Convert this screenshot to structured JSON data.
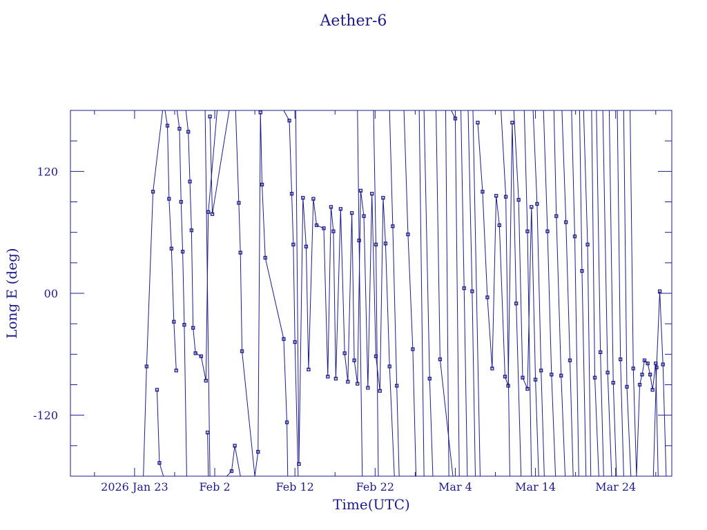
{
  "chart_data": {
    "type": "line",
    "title": "Aether-6",
    "xlabel": "Time(UTC)",
    "ylabel": "Long E (deg)",
    "x_start": "2026-01-15",
    "x_end": "2026-03-31",
    "xlim": [
      0,
      75
    ],
    "ylim": [
      -180,
      180
    ],
    "x_ticks": [
      {
        "t": 8,
        "label": "2026 Jan 23"
      },
      {
        "t": 18,
        "label": "Feb  2"
      },
      {
        "t": 28,
        "label": "Feb 12"
      },
      {
        "t": 38,
        "label": "Feb 22"
      },
      {
        "t": 48,
        "label": "Mar  4"
      },
      {
        "t": 58,
        "label": "Mar 14"
      },
      {
        "t": 68,
        "label": "Mar 24"
      }
    ],
    "y_ticks": [
      {
        "v": 120,
        "label": "120"
      },
      {
        "v": 0,
        "label": "00"
      },
      {
        "v": -120,
        "label": "-120"
      }
    ],
    "segments": [
      [
        [
          9.1,
          -180
        ],
        [
          9.5,
          -72
        ],
        [
          10.3,
          100
        ],
        [
          11.5,
          180
        ]
      ],
      [
        [
          10.8,
          -95
        ],
        [
          11.1,
          -167
        ],
        [
          11.6,
          -180
        ]
      ],
      [
        [
          11.8,
          180
        ],
        [
          12.1,
          165
        ],
        [
          12.3,
          93
        ],
        [
          12.6,
          44
        ],
        [
          12.9,
          -28
        ],
        [
          13.2,
          -76
        ]
      ],
      [
        [
          13.3,
          180
        ],
        [
          13.6,
          162
        ],
        [
          13.8,
          90
        ],
        [
          14.0,
          41
        ],
        [
          14.2,
          -31
        ],
        [
          14.5,
          -180
        ]
      ],
      [
        [
          14.4,
          180
        ],
        [
          14.7,
          159
        ],
        [
          14.9,
          110
        ],
        [
          15.1,
          62
        ],
        [
          15.3,
          -34
        ],
        [
          15.6,
          -59
        ],
        [
          16.3,
          -62
        ],
        [
          16.9,
          -86
        ],
        [
          17.2,
          80
        ],
        [
          18.3,
          180
        ]
      ],
      [
        [
          16.8,
          180
        ],
        [
          17.4,
          -180
        ]
      ],
      [
        [
          17.1,
          -137
        ],
        [
          17.2,
          -180
        ]
      ],
      [
        [
          17.4,
          174
        ],
        [
          17.7,
          78
        ],
        [
          19.8,
          180
        ]
      ],
      [
        [
          19.5,
          -180
        ],
        [
          20.1,
          -175
        ],
        [
          20.5,
          -150
        ],
        [
          21.2,
          -180
        ]
      ],
      [
        [
          20.6,
          180
        ],
        [
          21.0,
          89
        ],
        [
          21.2,
          40
        ],
        [
          21.4,
          -57
        ],
        [
          23.0,
          -180
        ]
      ],
      [
        [
          23.0,
          -180
        ],
        [
          23.4,
          -156
        ],
        [
          23.7,
          178
        ],
        [
          23.9,
          107
        ],
        [
          24.3,
          35
        ],
        [
          26.6,
          -45
        ],
        [
          27.0,
          -127
        ],
        [
          27.1,
          -180
        ]
      ],
      [
        [
          26.6,
          180
        ],
        [
          27.3,
          170
        ],
        [
          27.6,
          98
        ],
        [
          27.8,
          48
        ],
        [
          28.0,
          -48
        ],
        [
          28.4,
          -180
        ]
      ],
      [
        [
          28.1,
          180
        ],
        [
          28.5,
          -168
        ],
        [
          29.0,
          94
        ],
        [
          29.4,
          46
        ],
        [
          29.7,
          -75
        ],
        [
          30.3,
          93
        ],
        [
          30.7,
          67
        ],
        [
          31.6,
          64
        ],
        [
          32.1,
          -82
        ],
        [
          32.5,
          85
        ],
        [
          32.8,
          61
        ],
        [
          33.1,
          -84
        ],
        [
          33.7,
          83
        ],
        [
          34.2,
          -59
        ],
        [
          34.6,
          -87
        ],
        [
          35.1,
          79
        ],
        [
          35.4,
          -66
        ],
        [
          35.8,
          -89
        ],
        [
          36.2,
          101
        ],
        [
          36.6,
          76
        ],
        [
          37.1,
          -93
        ],
        [
          37.6,
          98
        ],
        [
          38.1,
          -62
        ],
        [
          38.6,
          -96
        ],
        [
          39.0,
          94
        ],
        [
          39.3,
          49
        ],
        [
          39.8,
          -72
        ],
        [
          40.4,
          -180
        ]
      ],
      [
        [
          35.8,
          180
        ],
        [
          36.0,
          52
        ],
        [
          36.4,
          -180
        ]
      ],
      [
        [
          37.8,
          180
        ],
        [
          38.1,
          48
        ],
        [
          38.4,
          -180
        ]
      ],
      [
        [
          39.8,
          180
        ],
        [
          40.2,
          66
        ],
        [
          40.7,
          -91
        ],
        [
          41.0,
          -180
        ]
      ],
      [
        [
          41.6,
          180
        ],
        [
          42.1,
          58
        ],
        [
          42.7,
          -55
        ],
        [
          43.1,
          -180
        ]
      ],
      [
        [
          43.5,
          180
        ],
        [
          44.1,
          -180
        ]
      ],
      [
        [
          44.1,
          180
        ],
        [
          44.8,
          -84
        ],
        [
          45.2,
          -180
        ]
      ],
      [
        [
          45.6,
          180
        ],
        [
          46.1,
          -65
        ],
        [
          47.7,
          -180
        ]
      ],
      [
        [
          46.8,
          180
        ],
        [
          47.2,
          -180
        ]
      ],
      [
        [
          47.5,
          180
        ],
        [
          48.0,
          172
        ],
        [
          48.5,
          -180
        ]
      ],
      [
        [
          48.7,
          180
        ],
        [
          49.1,
          5
        ],
        [
          49.5,
          -180
        ]
      ],
      [
        [
          49.6,
          180
        ],
        [
          50.1,
          2
        ],
        [
          50.5,
          -180
        ]
      ],
      [
        [
          50.2,
          180
        ],
        [
          51.1,
          -180
        ]
      ],
      [
        [
          50.8,
          168
        ],
        [
          51.4,
          100
        ],
        [
          52.0,
          -4
        ],
        [
          52.6,
          -74
        ],
        [
          53.1,
          96
        ],
        [
          53.5,
          67
        ],
        [
          54.2,
          -82
        ],
        [
          54.6,
          -91
        ],
        [
          55.1,
          168
        ],
        [
          55.6,
          -10
        ],
        [
          56.2,
          -180
        ]
      ],
      [
        [
          53.7,
          180
        ],
        [
          54.3,
          95
        ],
        [
          54.8,
          -180
        ]
      ],
      [
        [
          55.3,
          180
        ],
        [
          55.9,
          92
        ],
        [
          56.4,
          -83
        ],
        [
          57.0,
          -94
        ],
        [
          57.5,
          85
        ],
        [
          58.0,
          -85
        ],
        [
          58.4,
          -180
        ]
      ],
      [
        [
          56.6,
          180
        ],
        [
          57.0,
          61
        ],
        [
          57.5,
          -180
        ]
      ],
      [
        [
          57.7,
          180
        ],
        [
          58.2,
          88
        ],
        [
          58.7,
          -76
        ],
        [
          59.1,
          -180
        ]
      ],
      [
        [
          59.0,
          180
        ],
        [
          59.5,
          61
        ],
        [
          60.0,
          -80
        ],
        [
          60.5,
          -180
        ]
      ],
      [
        [
          60.3,
          180
        ],
        [
          60.6,
          76
        ],
        [
          61.2,
          -81
        ],
        [
          61.7,
          -180
        ]
      ],
      [
        [
          61.3,
          180
        ],
        [
          61.8,
          70
        ],
        [
          62.3,
          -66
        ],
        [
          62.7,
          -180
        ]
      ],
      [
        [
          62.5,
          180
        ],
        [
          62.9,
          56
        ],
        [
          63.4,
          -180
        ]
      ],
      [
        [
          63.5,
          180
        ],
        [
          63.8,
          22
        ],
        [
          64.3,
          -180
        ]
      ],
      [
        [
          64.0,
          180
        ],
        [
          64.5,
          48
        ],
        [
          64.9,
          -180
        ]
      ],
      [
        [
          65.0,
          180
        ],
        [
          65.4,
          -83
        ],
        [
          65.9,
          -180
        ]
      ],
      [
        [
          65.6,
          180
        ],
        [
          66.1,
          -58
        ],
        [
          66.5,
          -180
        ]
      ],
      [
        [
          66.4,
          180
        ],
        [
          67.0,
          -78
        ],
        [
          67.5,
          -180
        ]
      ],
      [
        [
          67.2,
          180
        ],
        [
          67.7,
          -88
        ],
        [
          68.1,
          -180
        ]
      ],
      [
        [
          68.2,
          180
        ],
        [
          68.6,
          -65
        ],
        [
          69.0,
          -180
        ]
      ],
      [
        [
          69.0,
          180
        ],
        [
          69.4,
          -92
        ],
        [
          69.9,
          -180
        ]
      ],
      [
        [
          69.8,
          180
        ],
        [
          70.2,
          -74
        ],
        [
          70.6,
          -180
        ]
      ],
      [
        [
          70.6,
          -180
        ],
        [
          71.0,
          -90
        ],
        [
          71.3,
          -80
        ],
        [
          71.6,
          -66
        ],
        [
          72.0,
          -69
        ],
        [
          72.3,
          -80
        ],
        [
          72.6,
          -95
        ],
        [
          73.0,
          -69
        ],
        [
          73.3,
          -180
        ]
      ],
      [
        [
          72.7,
          -180
        ],
        [
          73.1,
          -73
        ],
        [
          73.5,
          2
        ],
        [
          73.9,
          -70
        ],
        [
          74.3,
          -180
        ]
      ]
    ]
  }
}
